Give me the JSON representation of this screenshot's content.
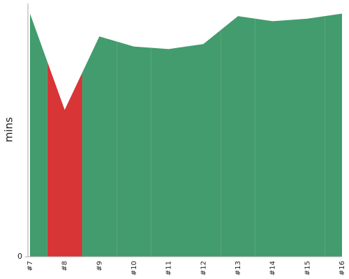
{
  "chart_data": {
    "type": "area",
    "y_label": "mins",
    "categories": [
      "#7",
      "#8",
      "#9",
      "#10",
      "#11",
      "#12",
      "#13",
      "#14",
      "#15",
      "#16"
    ],
    "values": [
      0.96,
      0.58,
      0.87,
      0.83,
      0.82,
      0.84,
      0.95,
      0.93,
      0.94,
      0.96
    ],
    "colors": [
      "#439c6d",
      "#d73536",
      "#439c6d",
      "#439c6d",
      "#439c6d",
      "#439c6d",
      "#439c6d",
      "#439c6d",
      "#439c6d",
      "#439c6d"
    ],
    "ylim": [
      0,
      1
    ],
    "yticks": [
      0
    ]
  }
}
